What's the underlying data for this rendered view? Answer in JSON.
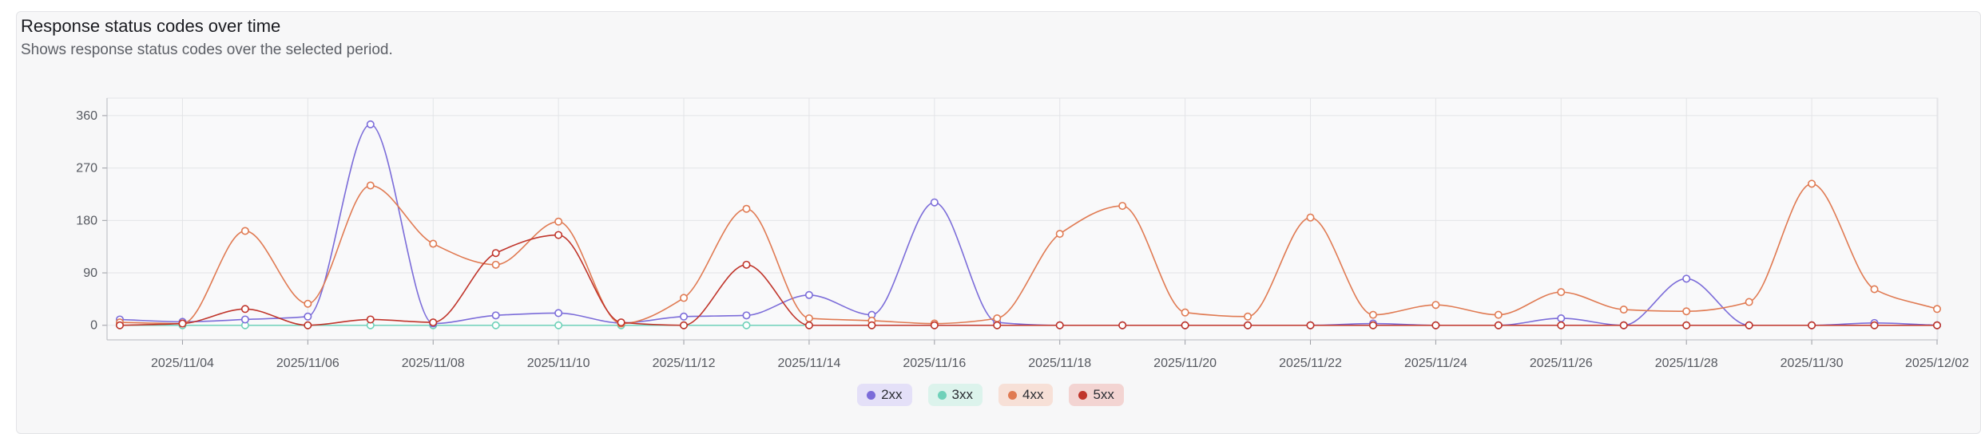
{
  "panel": {
    "title": "Response status codes over time",
    "subtitle": "Shows response status codes over the selected period."
  },
  "chart_data": {
    "type": "line",
    "title": "Response status codes over time",
    "subtitle": "Shows response status codes over the selected period.",
    "x": [
      "2025/11/03",
      "2025/11/04",
      "2025/11/05",
      "2025/11/06",
      "2025/11/07",
      "2025/11/08",
      "2025/11/09",
      "2025/11/10",
      "2025/11/11",
      "2025/11/12",
      "2025/11/13",
      "2025/11/14",
      "2025/11/15",
      "2025/11/16",
      "2025/11/17",
      "2025/11/18",
      "2025/11/19",
      "2025/11/20",
      "2025/11/21",
      "2025/11/22",
      "2025/11/23",
      "2025/11/24",
      "2025/11/25",
      "2025/11/26",
      "2025/11/27",
      "2025/11/28",
      "2025/11/29",
      "2025/11/30",
      "2025/12/01",
      "2025/12/02"
    ],
    "x_ticks": [
      "2025/11/04",
      "2025/11/06",
      "2025/11/08",
      "2025/11/10",
      "2025/11/12",
      "2025/11/14",
      "2025/11/16",
      "2025/11/18",
      "2025/11/20",
      "2025/11/22",
      "2025/11/24",
      "2025/11/26",
      "2025/11/28",
      "2025/11/30",
      "2025/12/02"
    ],
    "y_ticks": [
      0,
      90,
      180,
      270,
      360
    ],
    "ylim": [
      -25,
      390
    ],
    "grid": true,
    "legend_position": "bottom-center",
    "smooth": true,
    "series": [
      {
        "name": "2xx",
        "color": "#7b6cd9",
        "legend_bg": "#e4e0f8",
        "values": [
          10,
          6,
          10,
          15,
          345,
          3,
          17,
          21,
          4,
          15,
          17,
          52,
          18,
          211,
          5,
          0,
          0,
          0,
          0,
          0,
          3,
          0,
          0,
          12,
          0,
          80,
          0,
          0,
          4,
          0
        ]
      },
      {
        "name": "3xx",
        "color": "#6fd1b9",
        "legend_bg": "#dcf3ec",
        "values": [
          0,
          0,
          0,
          0,
          0,
          0,
          0,
          0,
          0,
          0,
          0,
          0,
          0,
          0,
          0,
          0,
          0,
          0,
          0,
          0,
          0,
          0,
          0,
          0,
          0,
          0,
          0,
          0,
          0,
          0
        ]
      },
      {
        "name": "4xx",
        "color": "#e07a52",
        "legend_bg": "#f7e0d7",
        "values": [
          5,
          3,
          162,
          37,
          240,
          140,
          104,
          178,
          3,
          47,
          200,
          12,
          8,
          3,
          12,
          157,
          205,
          22,
          15,
          185,
          18,
          35,
          18,
          57,
          27,
          24,
          40,
          243,
          62,
          28
        ]
      },
      {
        "name": "5xx",
        "color": "#c0352b",
        "legend_bg": "#f3d4d2",
        "values": [
          0,
          3,
          28,
          0,
          10,
          5,
          124,
          155,
          5,
          0,
          104,
          0,
          0,
          0,
          0,
          0,
          0,
          0,
          0,
          0,
          0,
          0,
          0,
          0,
          0,
          0,
          0,
          0,
          0,
          0
        ]
      }
    ]
  }
}
